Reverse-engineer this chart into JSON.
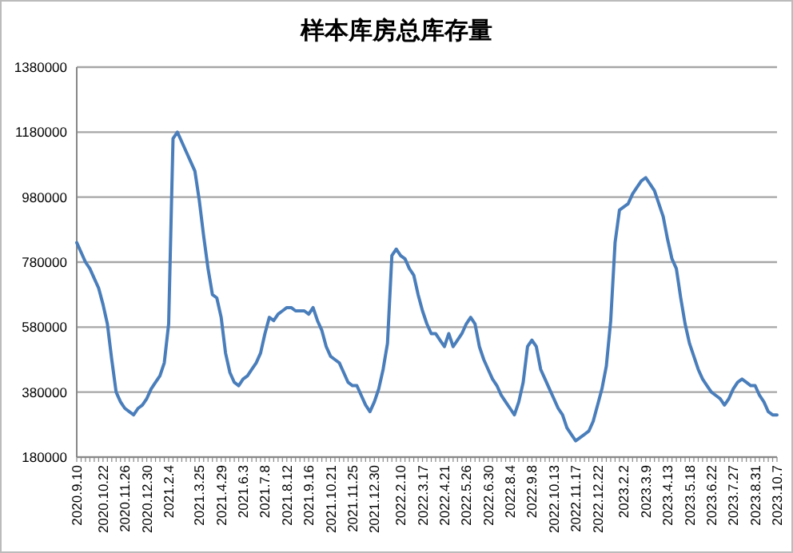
{
  "chart_data": {
    "type": "line",
    "title": "样本库房总库存量",
    "categories": [
      "2020.9.10",
      null,
      null,
      null,
      null,
      null,
      "2020.10.22",
      null,
      null,
      null,
      null,
      "2020.11.26",
      null,
      null,
      null,
      null,
      "2020.12.30",
      null,
      null,
      null,
      null,
      "2021.2.4",
      null,
      null,
      null,
      null,
      null,
      null,
      "2021.3.25",
      null,
      null,
      null,
      null,
      "2021.4.29",
      null,
      null,
      null,
      null,
      "2021.6.3",
      null,
      null,
      null,
      null,
      "2021.7.8",
      null,
      null,
      null,
      null,
      "2021.8.12",
      null,
      null,
      null,
      null,
      "2021.9.16",
      null,
      null,
      null,
      null,
      "2021.10.21",
      null,
      null,
      null,
      null,
      "2021.11.25",
      null,
      null,
      null,
      null,
      "2021.12.30",
      null,
      null,
      null,
      null,
      null,
      "2022.2.10",
      null,
      null,
      null,
      null,
      "2022.3.17",
      null,
      null,
      null,
      null,
      "2022.4.21",
      null,
      null,
      null,
      null,
      "2022.5.26",
      null,
      null,
      null,
      null,
      "2022.6.30",
      null,
      null,
      null,
      null,
      "2022.8.4",
      null,
      null,
      null,
      null,
      "2022.9.8",
      null,
      null,
      null,
      null,
      "2022.10.13",
      null,
      null,
      null,
      null,
      "2022.11.17",
      null,
      null,
      null,
      null,
      "2022.12.22",
      null,
      null,
      null,
      null,
      null,
      "2023.2.2",
      null,
      null,
      null,
      null,
      "2023.3.9",
      null,
      null,
      null,
      null,
      "2023.4.13",
      null,
      null,
      null,
      null,
      "2023.5.18",
      null,
      null,
      null,
      null,
      "2023.6.22",
      null,
      null,
      null,
      null,
      "2023.7.27",
      null,
      null,
      null,
      null,
      "2023.8.31",
      null,
      null,
      null,
      null,
      "2023.10.7"
    ],
    "series": [
      {
        "color": "#4a7ebb",
        "values": [
          840000,
          810000,
          780000,
          760000,
          730000,
          700000,
          650000,
          590000,
          480000,
          380000,
          350000,
          330000,
          320000,
          310000,
          330000,
          340000,
          360000,
          390000,
          410000,
          430000,
          470000,
          590000,
          1160000,
          1180000,
          1150000,
          1120000,
          1090000,
          1060000,
          970000,
          860000,
          760000,
          680000,
          670000,
          610000,
          500000,
          440000,
          410000,
          400000,
          420000,
          430000,
          450000,
          470000,
          500000,
          560000,
          610000,
          600000,
          620000,
          630000,
          640000,
          640000,
          630000,
          630000,
          630000,
          620000,
          640000,
          600000,
          570000,
          520000,
          490000,
          480000,
          470000,
          440000,
          410000,
          400000,
          400000,
          370000,
          340000,
          320000,
          350000,
          390000,
          450000,
          530000,
          800000,
          820000,
          800000,
          790000,
          760000,
          740000,
          680000,
          630000,
          590000,
          560000,
          560000,
          540000,
          520000,
          560000,
          520000,
          540000,
          560000,
          590000,
          610000,
          590000,
          520000,
          480000,
          450000,
          420000,
          400000,
          370000,
          350000,
          330000,
          310000,
          350000,
          410000,
          520000,
          540000,
          520000,
          450000,
          420000,
          390000,
          360000,
          330000,
          310000,
          270000,
          250000,
          230000,
          240000,
          250000,
          260000,
          290000,
          340000,
          390000,
          460000,
          600000,
          840000,
          940000,
          950000,
          960000,
          990000,
          1010000,
          1030000,
          1040000,
          1020000,
          1000000,
          960000,
          920000,
          850000,
          790000,
          760000,
          670000,
          590000,
          530000,
          490000,
          450000,
          420000,
          400000,
          380000,
          370000,
          360000,
          340000,
          360000,
          390000,
          410000,
          420000,
          410000,
          400000,
          400000,
          370000,
          350000,
          320000,
          310000,
          310000
        ]
      }
    ],
    "ylim": [
      180000,
      1380000
    ],
    "yticks": [
      180000,
      380000,
      580000,
      780000,
      980000,
      1180000,
      1380000
    ],
    "grid": "y",
    "marker": "none",
    "line_style": "solid"
  }
}
